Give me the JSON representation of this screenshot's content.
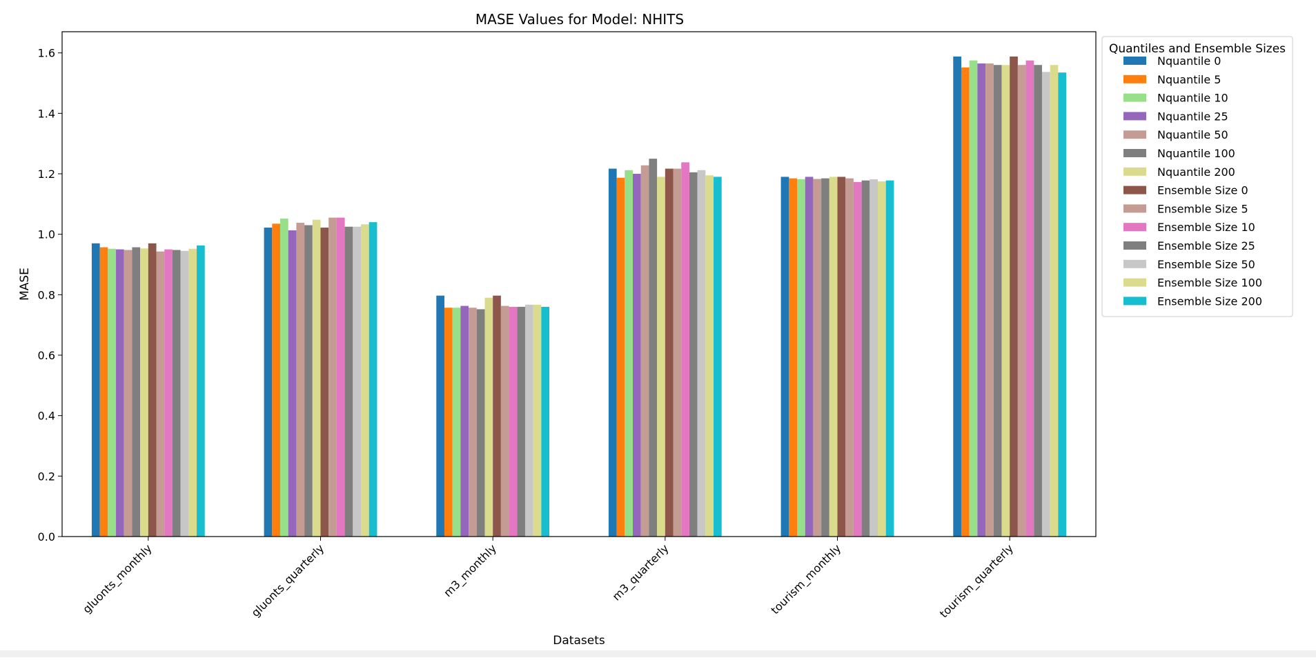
{
  "chart_data": {
    "type": "bar",
    "title": "MASE Values for Model: NHITS",
    "xlabel": "Datasets",
    "ylabel": "MASE",
    "ylim": [
      0,
      1.67
    ],
    "yticks": [
      0.0,
      0.2,
      0.4,
      0.6,
      0.8,
      1.0,
      1.2,
      1.4,
      1.6
    ],
    "ytick_labels": [
      "0.0",
      "0.2",
      "0.4",
      "0.6",
      "0.8",
      "1.0",
      "1.2",
      "1.4",
      "1.6"
    ],
    "grid": false,
    "legend": {
      "title": "Quantiles and Ensemble Sizes",
      "placement": "outside-right-top"
    },
    "categories": [
      "gluonts_monthly",
      "gluonts_quarterly",
      "m3_monthly",
      "m3_quarterly",
      "tourism_monthly",
      "tourism_quarterly"
    ],
    "series": [
      {
        "name": "Nquantile 0",
        "color": "#1f77b4",
        "values": [
          0.97,
          1.022,
          0.797,
          1.217,
          1.19,
          1.588
        ]
      },
      {
        "name": "Nquantile 5",
        "color": "#ff7f0e",
        "values": [
          0.957,
          1.035,
          0.757,
          1.187,
          1.185,
          1.552
        ]
      },
      {
        "name": "Nquantile 10",
        "color": "#98df8a",
        "values": [
          0.952,
          1.052,
          0.757,
          1.212,
          1.182,
          1.575
        ]
      },
      {
        "name": "Nquantile 25",
        "color": "#9467bd",
        "values": [
          0.95,
          1.013,
          0.763,
          1.2,
          1.19,
          1.565
        ]
      },
      {
        "name": "Nquantile 50",
        "color": "#c49c94",
        "values": [
          0.948,
          1.038,
          0.757,
          1.228,
          1.183,
          1.565
        ]
      },
      {
        "name": "Nquantile 100",
        "color": "#7f7f7f",
        "values": [
          0.957,
          1.03,
          0.752,
          1.25,
          1.185,
          1.56
        ]
      },
      {
        "name": "Nquantile 200",
        "color": "#dbdb8d",
        "values": [
          0.953,
          1.048,
          0.79,
          1.19,
          1.19,
          1.56
        ]
      },
      {
        "name": "Ensemble Size 0",
        "color": "#8c564b",
        "values": [
          0.97,
          1.022,
          0.797,
          1.217,
          1.19,
          1.588
        ]
      },
      {
        "name": "Ensemble Size 5",
        "color": "#c49c94",
        "values": [
          0.943,
          1.055,
          0.763,
          1.217,
          1.185,
          1.56
        ]
      },
      {
        "name": "Ensemble Size 10",
        "color": "#e377c2",
        "values": [
          0.95,
          1.055,
          0.76,
          1.238,
          1.173,
          1.575
        ]
      },
      {
        "name": "Ensemble Size 25",
        "color": "#7f7f7f",
        "values": [
          0.948,
          1.025,
          0.76,
          1.205,
          1.178,
          1.56
        ]
      },
      {
        "name": "Ensemble Size 50",
        "color": "#c7c7c7",
        "values": [
          0.945,
          1.025,
          0.767,
          1.212,
          1.182,
          1.537
        ]
      },
      {
        "name": "Ensemble Size 100",
        "color": "#dbdb8d",
        "values": [
          0.952,
          1.033,
          0.767,
          1.195,
          1.175,
          1.56
        ]
      },
      {
        "name": "Ensemble Size 200",
        "color": "#17becf",
        "values": [
          0.963,
          1.04,
          0.76,
          1.19,
          1.178,
          1.535
        ]
      }
    ]
  }
}
